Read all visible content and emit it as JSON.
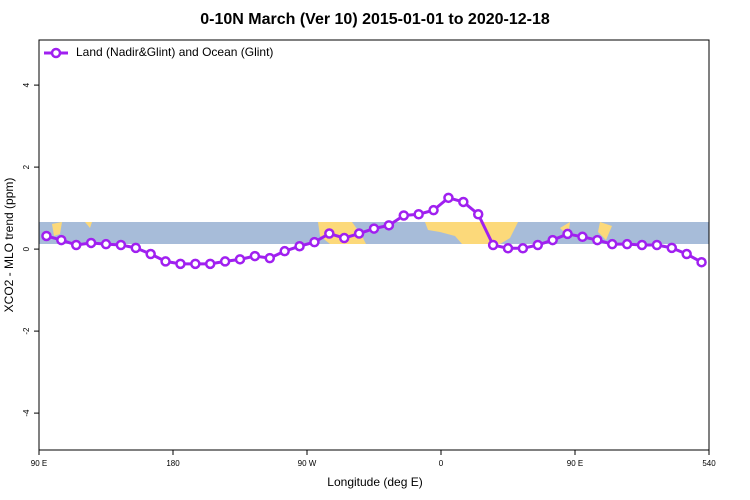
{
  "chart_data": {
    "type": "line",
    "title": "0-10N March (Ver 10)   2015-01-01 to 2020-12-18",
    "x_label": "Longitude (deg E)",
    "y_label": "XCO2 - MLO trend (ppm)",
    "x": [
      95,
      105,
      115,
      125,
      135,
      145,
      155,
      165,
      175,
      185,
      195,
      205,
      215,
      225,
      235,
      245,
      255,
      265,
      275,
      285,
      295,
      305,
      315,
      325,
      335,
      345,
      355,
      365,
      375,
      385,
      395,
      405,
      415,
      425,
      435,
      445,
      455,
      465,
      475,
      485,
      495,
      505,
      515,
      525,
      535
    ],
    "series": [
      {
        "name": "Land (Nadir&Glint) and Ocean (Glint)",
        "color": "#a020f0",
        "values": [
          0.32,
          0.22,
          0.1,
          0.15,
          0.12,
          0.1,
          0.03,
          -0.12,
          -0.3,
          -0.36,
          -0.36,
          -0.36,
          -0.3,
          -0.25,
          -0.17,
          -0.22,
          -0.05,
          0.07,
          0.17,
          0.38,
          0.27,
          0.38,
          0.5,
          0.58,
          0.82,
          0.85,
          0.95,
          1.25,
          1.15,
          0.85,
          0.1,
          0.02,
          0.02,
          0.1,
          0.22,
          0.37,
          0.3,
          0.22,
          0.12,
          0.12,
          0.1,
          0.1,
          0.03,
          -0.12,
          -0.32
        ]
      }
    ],
    "xlim": [
      90,
      540
    ],
    "xticks": [
      {
        "value": 90,
        "label": "90 E"
      },
      180,
      {
        "value": 270,
        "label": "90 W"
      },
      {
        "value": 360,
        "label": "0"
      },
      {
        "value": 450,
        "label": "90 E"
      },
      540
    ],
    "ylim": [
      -4.9,
      5.1
    ],
    "yticks": [
      -4,
      -2,
      0,
      2,
      4
    ],
    "legend": "top-left"
  }
}
